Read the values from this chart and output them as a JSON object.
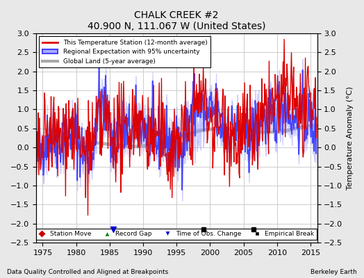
{
  "title": "CHALK CREEK #2",
  "subtitle": "40.900 N, 111.067 W (United States)",
  "xlabel_left": "Data Quality Controlled and Aligned at Breakpoints",
  "xlabel_right": "Berkeley Earth",
  "ylabel": "Temperature Anomaly (°C)",
  "xlim": [
    1974,
    2016
  ],
  "ylim": [
    -2.5,
    3
  ],
  "yticks": [
    -2.5,
    -2,
    -1.5,
    -1,
    -0.5,
    0,
    0.5,
    1,
    1.5,
    2,
    2.5,
    3
  ],
  "xticks": [
    1975,
    1980,
    1985,
    1990,
    1995,
    2000,
    2005,
    2010,
    2015
  ],
  "legend_labels": [
    "This Temperature Station (12-month average)",
    "Regional Expectation with 95% uncertainty",
    "Global Land (5-year average)"
  ],
  "legend_colors": [
    "#dd0000",
    "#4444ff",
    "#aaaaaa"
  ],
  "bg_color": "#e8e8e8",
  "plot_bg_color": "#ffffff",
  "grid_color": "#cccccc",
  "marker_events": {
    "time_of_obs": [
      1985.5
    ],
    "empirical_break": [
      1999.0,
      2006.5
    ]
  },
  "seed": 42
}
